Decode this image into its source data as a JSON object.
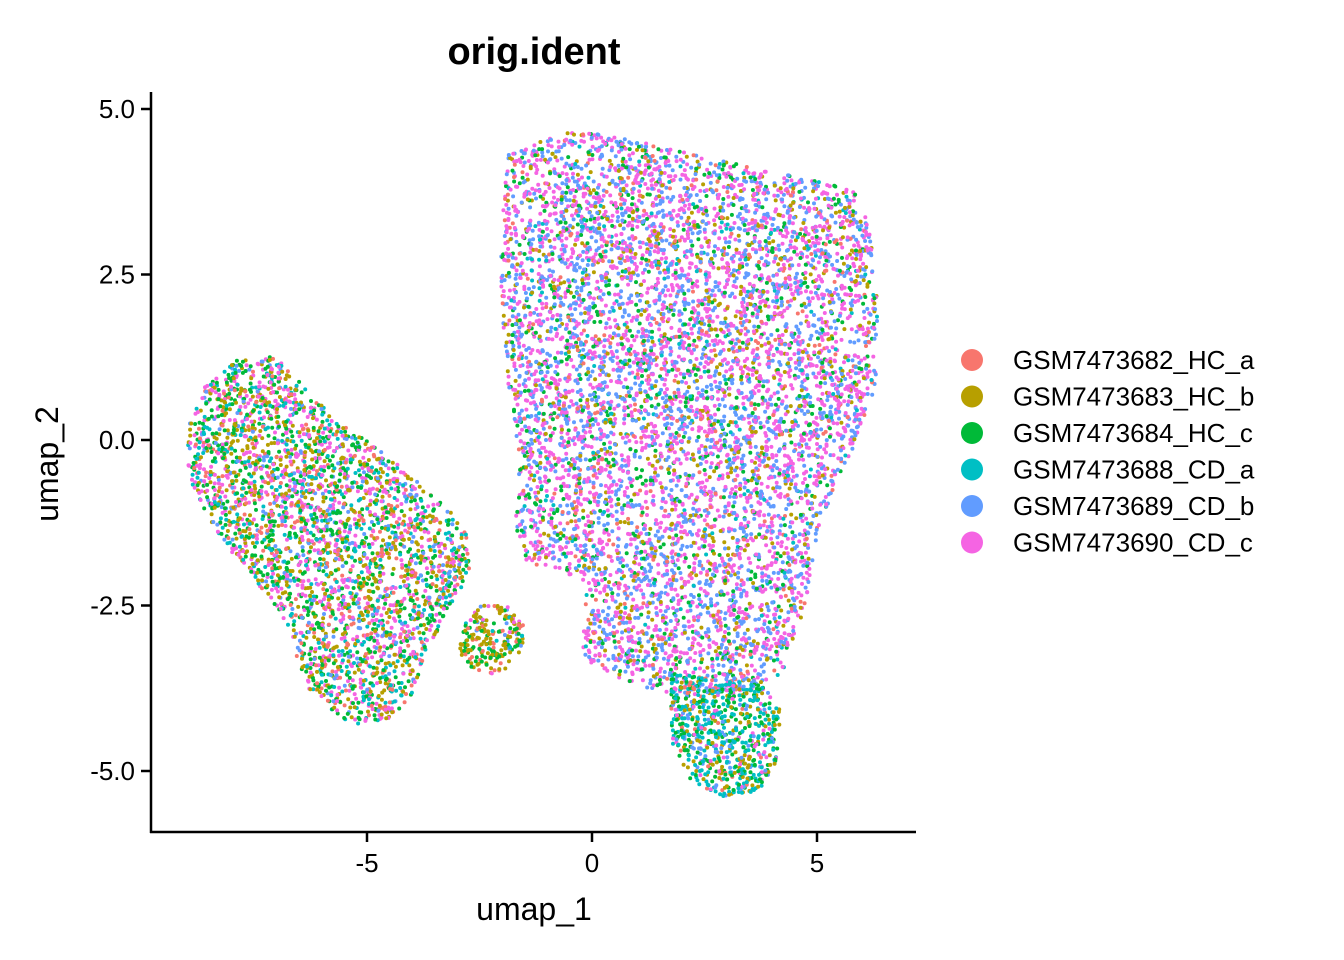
{
  "chart_data": {
    "type": "scatter",
    "title": "orig.ident",
    "xlabel": "umap_1",
    "ylabel": "umap_2",
    "xlim": [
      -9.5,
      7.2
    ],
    "ylim": [
      -5.9,
      5.2
    ],
    "x_ticks": [
      -5,
      0,
      5
    ],
    "x_tick_labels": [
      "-5",
      "0",
      "5"
    ],
    "y_ticks": [
      -5,
      -2.5,
      0,
      2.5,
      5
    ],
    "y_tick_labels": [
      "-5.0",
      "-2.5",
      "0.0",
      "2.5",
      "5.0"
    ],
    "grid": false,
    "legend_position": "right",
    "series": [
      {
        "name": "GSM7473682_HC_a",
        "color": "#F8766D"
      },
      {
        "name": "GSM7473683_HC_b",
        "color": "#B79F00"
      },
      {
        "name": "GSM7473684_HC_c",
        "color": "#00BA38"
      },
      {
        "name": "GSM7473688_CD_a",
        "color": "#00BFC4"
      },
      {
        "name": "GSM7473689_CD_b",
        "color": "#619CFF"
      },
      {
        "name": "GSM7473690_CD_c",
        "color": "#F564E3"
      }
    ],
    "clusters": [
      {
        "region": "large-upper",
        "outline": [
          [
            -1.9,
            4.3
          ],
          [
            -1.0,
            4.55
          ],
          [
            -0.5,
            4.65
          ],
          [
            0.5,
            4.6
          ],
          [
            2.0,
            4.35
          ],
          [
            4.0,
            4.05
          ],
          [
            5.8,
            3.8
          ],
          [
            6.15,
            3.3
          ],
          [
            6.35,
            2.0
          ],
          [
            6.3,
            0.8
          ],
          [
            5.7,
            -0.3
          ],
          [
            5.1,
            -1.2
          ],
          [
            4.7,
            -2.6
          ],
          [
            4.3,
            -3.5
          ],
          [
            3.5,
            -3.8
          ],
          [
            2.2,
            -3.9
          ],
          [
            0.9,
            -3.7
          ],
          [
            0.3,
            -3.5
          ],
          [
            -0.2,
            -3.3
          ],
          [
            -0.15,
            -2.2
          ],
          [
            -0.9,
            -1.9
          ],
          [
            -1.5,
            -1.9
          ],
          [
            -1.7,
            -1.3
          ],
          [
            -1.6,
            -0.3
          ],
          [
            -1.9,
            1.0
          ],
          [
            -2.05,
            2.6
          ]
        ],
        "mix": [
          0.06,
          0.1,
          0.1,
          0.04,
          0.3,
          0.4
        ]
      },
      {
        "region": "left-lobe",
        "outline": [
          [
            -9.0,
            0.2
          ],
          [
            -8.6,
            0.8
          ],
          [
            -7.8,
            1.25
          ],
          [
            -7.0,
            1.25
          ],
          [
            -6.4,
            0.8
          ],
          [
            -5.7,
            0.3
          ],
          [
            -4.6,
            -0.2
          ],
          [
            -3.6,
            -0.8
          ],
          [
            -2.8,
            -1.3
          ],
          [
            -2.7,
            -2.0
          ],
          [
            -3.2,
            -2.6
          ],
          [
            -3.7,
            -3.2
          ],
          [
            -4.0,
            -3.9
          ],
          [
            -4.6,
            -4.25
          ],
          [
            -5.4,
            -4.3
          ],
          [
            -6.2,
            -3.9
          ],
          [
            -6.6,
            -3.2
          ],
          [
            -6.9,
            -2.6
          ],
          [
            -7.7,
            -2.0
          ],
          [
            -8.5,
            -1.2
          ],
          [
            -9.0,
            -0.5
          ]
        ],
        "mix": [
          0.1,
          0.22,
          0.22,
          0.14,
          0.08,
          0.24
        ]
      },
      {
        "region": "bottom-blob",
        "outline": [
          [
            1.8,
            -3.5
          ],
          [
            2.6,
            -3.6
          ],
          [
            3.8,
            -3.7
          ],
          [
            4.2,
            -4.1
          ],
          [
            4.15,
            -4.8
          ],
          [
            3.7,
            -5.3
          ],
          [
            2.9,
            -5.4
          ],
          [
            2.2,
            -5.15
          ],
          [
            1.8,
            -4.6
          ],
          [
            1.7,
            -4.0
          ]
        ],
        "mix": [
          0.05,
          0.15,
          0.25,
          0.35,
          0.1,
          0.1
        ]
      },
      {
        "region": "small-island",
        "outline": [
          [
            -2.5,
            -2.5
          ],
          [
            -1.9,
            -2.5
          ],
          [
            -1.5,
            -2.8
          ],
          [
            -1.55,
            -3.2
          ],
          [
            -2.0,
            -3.55
          ],
          [
            -2.6,
            -3.5
          ],
          [
            -2.95,
            -3.2
          ],
          [
            -2.85,
            -2.8
          ]
        ],
        "mix": [
          0.15,
          0.45,
          0.25,
          0.05,
          0.05,
          0.05
        ]
      }
    ]
  }
}
